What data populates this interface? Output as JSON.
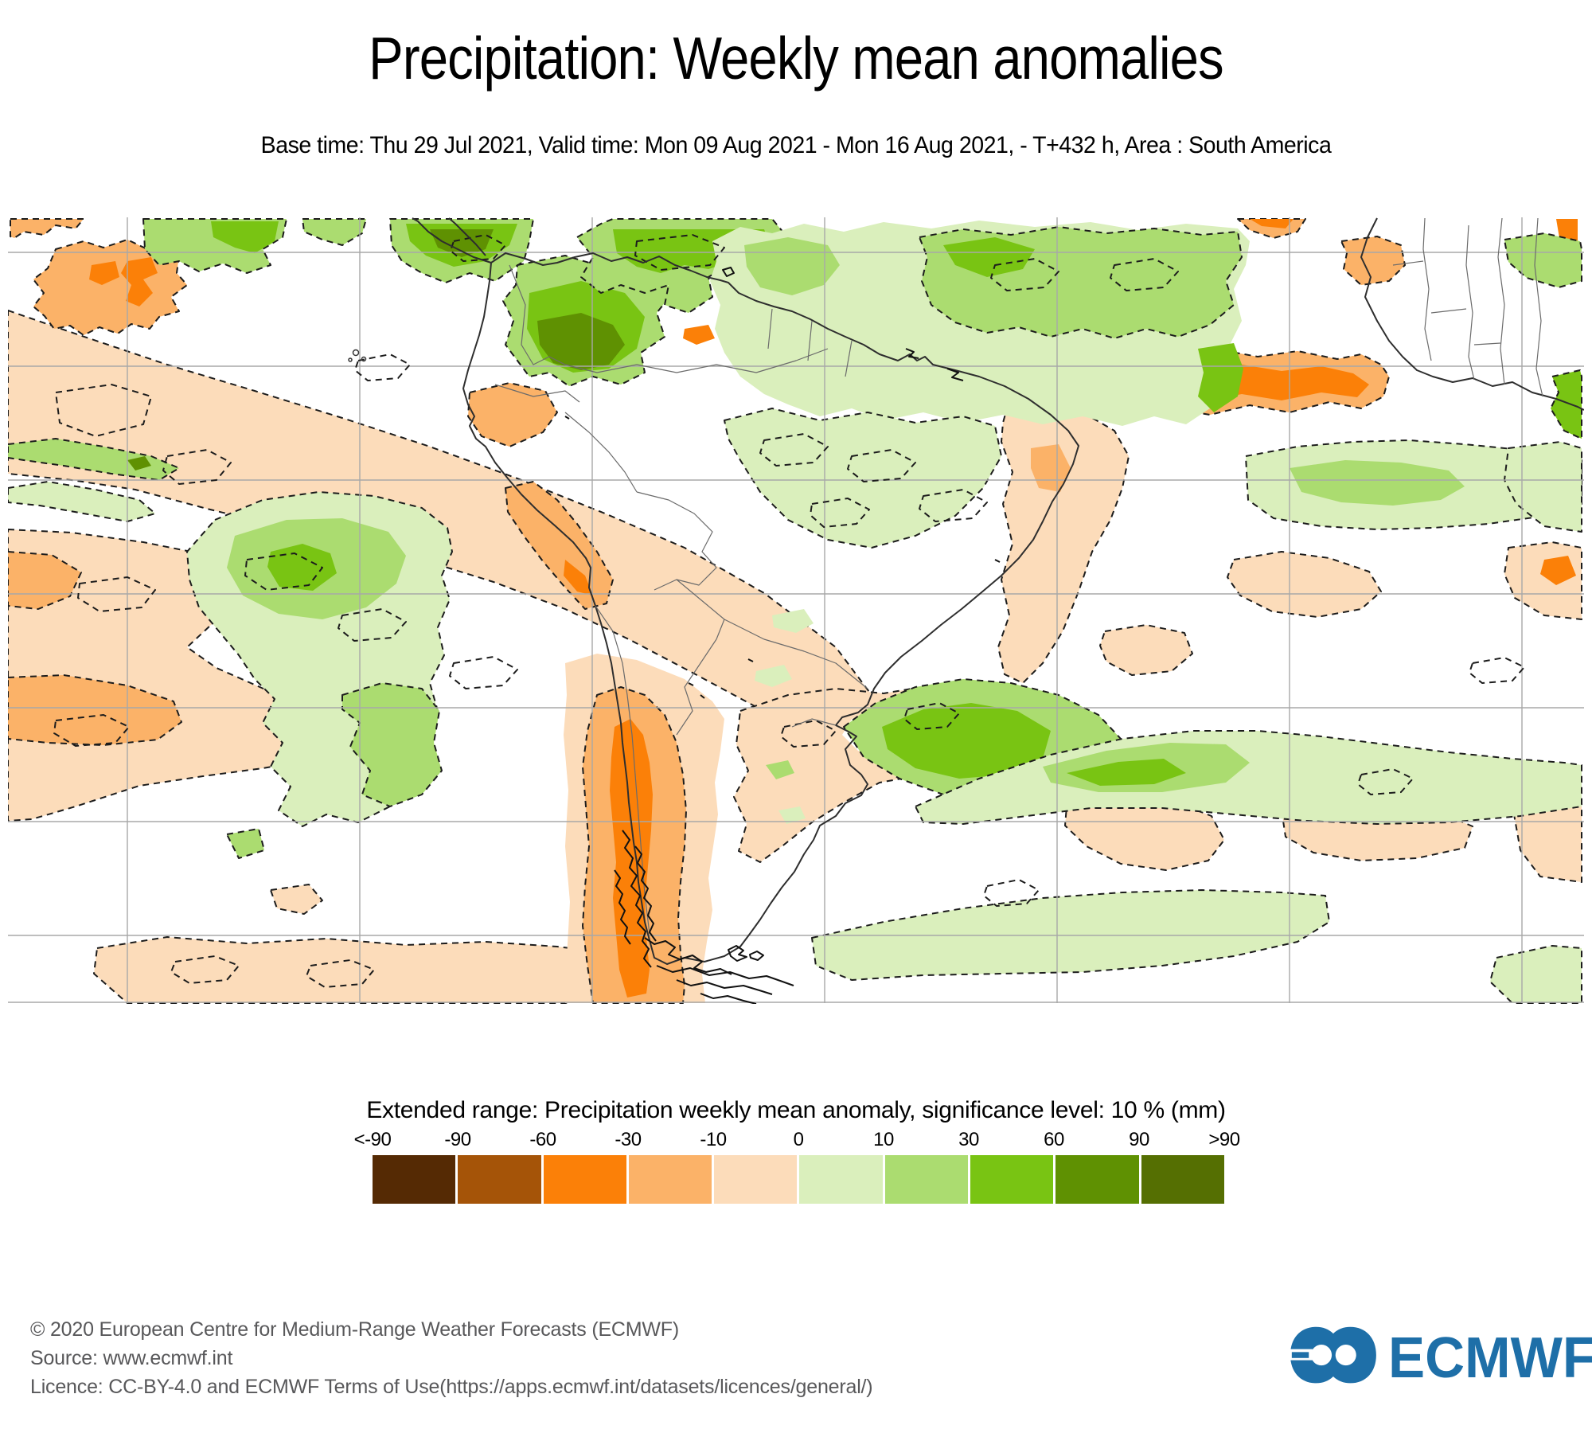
{
  "header": {
    "title": "Precipitation: Weekly mean anomalies",
    "subtitle": "Base time: Thu 29 Jul 2021, Valid time: Mon 09 Aug 2021 - Mon 16 Aug 2021, - T+432 h, Area : South America"
  },
  "legend": {
    "title": "Extended range: Precipitation weekly mean anomaly, significance level: 10 % (mm)",
    "ticks": [
      "<-90",
      "-90",
      "-60",
      "-30",
      "-10",
      "0",
      "10",
      "30",
      "60",
      "90",
      ">90"
    ],
    "colors": [
      "#552a04",
      "#a55408",
      "#fb8008",
      "#fbb268",
      "#fcdcba",
      "#daefbc",
      "#abdc70",
      "#79c413",
      "#5f9102",
      "#556f02"
    ]
  },
  "chart_data": {
    "type": "heatmap",
    "title": "Precipitation: Weekly mean anomalies",
    "area": "South America",
    "base_time": "Thu 29 Jul 2021",
    "valid_time": "Mon 09 Aug 2021 - Mon 16 Aug 2021",
    "lead": "T+432 h",
    "units": "mm",
    "significance_level": "10 %",
    "levels": [
      "<-90",
      "-90",
      "-60",
      "-30",
      "-10",
      "0",
      "10",
      "30",
      "60",
      "90",
      ">90"
    ],
    "palette": [
      "#552a04",
      "#a55408",
      "#fb8008",
      "#fbb268",
      "#fcdcba",
      "#daefbc",
      "#abdc70",
      "#79c413",
      "#5f9102",
      "#556f02"
    ],
    "legend_position": "bottom",
    "grid": true,
    "notes": "Filled contour anomaly map; dashed black contours mark significant regions; orange/brown = dry anomaly, green = wet anomaly"
  },
  "map": {
    "grid_color": "#a8a8a8",
    "coast_color": "#2e2e2e",
    "border_color": "#6b6b6b",
    "contour_color": "#1c1c1c",
    "fill_negative_light": "#fcdcba",
    "fill_negative_mid": "#fbb268",
    "fill_negative_strong": "#fb8008",
    "fill_positive_pale": "#daefbc",
    "fill_positive_mid": "#abdc70",
    "fill_positive_bright": "#79c413",
    "fill_positive_dark": "#5f9102"
  },
  "footer": {
    "copyright": "© 2020 European Centre for Medium-Range Weather Forecasts (ECMWF)",
    "source": "Source: www.ecmwf.int",
    "licence": "Licence: CC-BY-4.0 and ECMWF Terms of Use(https://apps.ecmwf.int/datasets/licences/general/)"
  },
  "logo": {
    "text": "ECMWF",
    "color": "#1e6fa8"
  }
}
